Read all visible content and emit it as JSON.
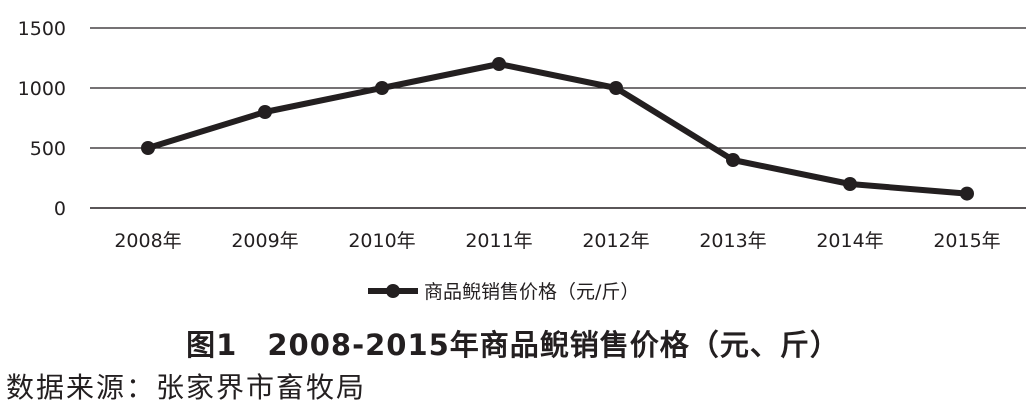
{
  "chart_data": {
    "type": "line",
    "title": "",
    "xlabel": "",
    "ylabel": "",
    "categories": [
      "2008年",
      "2009年",
      "2010年",
      "2011年",
      "2012年",
      "2013年",
      "2014年",
      "2015年"
    ],
    "series": [
      {
        "name": "商品鲵销售价格（元/斤）",
        "values": [
          500,
          800,
          1000,
          1200,
          1000,
          400,
          200,
          120
        ],
        "color": "#231f20"
      }
    ],
    "ylim": [
      0,
      1500
    ],
    "yticks": [
      0,
      500,
      1000,
      1500
    ],
    "grid": true,
    "legend_position": "bottom"
  },
  "figure": {
    "caption": "图1　2008-2015年商品鲵销售价格（元、斤）",
    "source": "数据来源：张家界市畜牧局"
  }
}
